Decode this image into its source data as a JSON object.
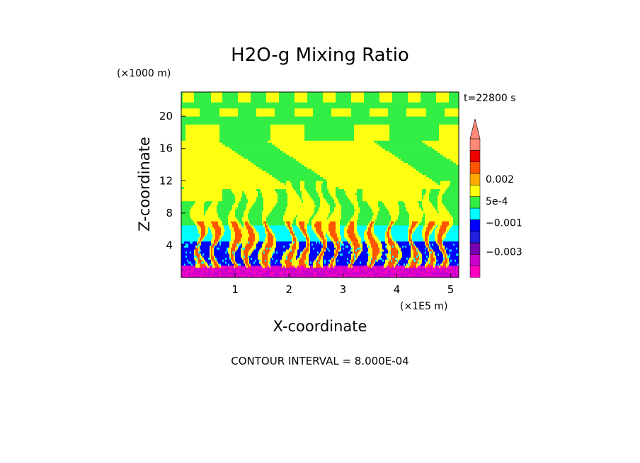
{
  "chart_data": {
    "type": "heatmap",
    "title": "H2O-g Mixing Ratio",
    "xlabel": "X-coordinate",
    "ylabel": "Z-coordinate",
    "x_unit": "(×1E5 m)",
    "y_unit": "(×1000 m)",
    "time_label": "t=22800 s",
    "footer": "CONTOUR INTERVAL = 8.000E-04",
    "xlim": [
      0,
      5.15
    ],
    "ylim": [
      0,
      23
    ],
    "x_ticks": [
      1,
      2,
      3,
      4,
      5
    ],
    "y_ticks": [
      4,
      8,
      12,
      16,
      20
    ],
    "levels": [
      {
        "value": -0.0044,
        "color": "#ff00c0"
      },
      {
        "value": -0.0036,
        "color": "#cc00cc"
      },
      {
        "value": -0.0028,
        "color": "#7700b0"
      },
      {
        "value": -0.002,
        "color": "#2020dd"
      },
      {
        "value": -0.0012,
        "color": "#0000ff"
      },
      {
        "value": -0.0004,
        "color": "#00ffff"
      },
      {
        "value": 0.0004,
        "color": "#33ee44"
      },
      {
        "value": 0.0012,
        "color": "#ffff11"
      },
      {
        "value": 0.002,
        "color": "#ffaa00"
      },
      {
        "value": 0.0028,
        "color": "#ff5500"
      },
      {
        "value": 0.0036,
        "color": "#ee0000"
      },
      {
        "value": 0.0044,
        "color": "#ff8877"
      }
    ],
    "colorbar_labels": [
      {
        "value": 0.002,
        "text": "0.002"
      },
      {
        "value": 0.0005,
        "text": "5e-4"
      },
      {
        "value": -0.001,
        "text": "−0.001"
      },
      {
        "value": -0.003,
        "text": "−0.003"
      }
    ],
    "field_regions": [
      {
        "z_min": 0,
        "z_max": 1.5,
        "typical": -0.0036
      },
      {
        "z_min": 1.5,
        "z_max": 4.5,
        "typical": -0.0012
      },
      {
        "z_min": 4.5,
        "z_max": 6.5,
        "typical": -0.0004
      },
      {
        "z_min": 6.5,
        "z_max": 11,
        "typical": 0.0004
      },
      {
        "z_min": 11,
        "z_max": 17,
        "typical": 0.0012
      },
      {
        "z_min": 17,
        "z_max": 23,
        "typical": 0.0004
      }
    ]
  }
}
